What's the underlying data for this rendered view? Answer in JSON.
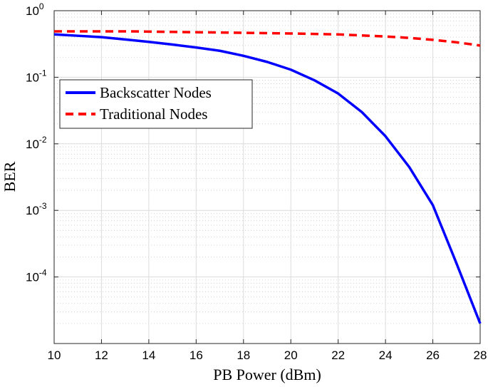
{
  "chart_data": {
    "type": "line",
    "title": "",
    "xlabel": "PB Power (dBm)",
    "ylabel": "BER",
    "x_ticks": [
      "10",
      "12",
      "14",
      "16",
      "18",
      "20",
      "22",
      "24",
      "26",
      "28"
    ],
    "y_ticks": [
      {
        "base": "10",
        "exp": "0"
      },
      {
        "base": "10",
        "exp": "-1"
      },
      {
        "base": "10",
        "exp": "-2"
      },
      {
        "base": "10",
        "exp": "-3"
      },
      {
        "base": "10",
        "exp": "-4"
      }
    ],
    "xlim": [
      10,
      28
    ],
    "ylim": [
      1e-05,
      1
    ],
    "yscale": "log",
    "grid": true,
    "legend_position": "upper-left",
    "x": [
      10,
      11,
      12,
      13,
      14,
      15,
      16,
      17,
      18,
      19,
      20,
      21,
      22,
      23,
      24,
      25,
      26,
      27,
      28
    ],
    "series": [
      {
        "name": "Backscatter Nodes",
        "color": "#0000ff",
        "style": "solid",
        "values": [
          0.44,
          0.42,
          0.4,
          0.37,
          0.34,
          0.31,
          0.28,
          0.25,
          0.21,
          0.17,
          0.13,
          0.09,
          0.057,
          0.03,
          0.013,
          0.0045,
          0.0012,
          0.00016,
          2e-05
        ]
      },
      {
        "name": "Traditional Nodes",
        "color": "#ff0000",
        "style": "dashed",
        "values": [
          0.49,
          0.49,
          0.49,
          0.49,
          0.485,
          0.48,
          0.475,
          0.47,
          0.465,
          0.46,
          0.455,
          0.448,
          0.44,
          0.425,
          0.41,
          0.39,
          0.365,
          0.335,
          0.3
        ]
      }
    ]
  }
}
